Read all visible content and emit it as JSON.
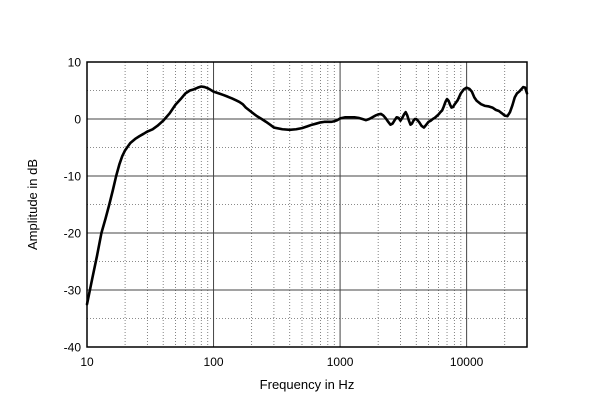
{
  "chart_data": {
    "type": "line",
    "xlabel": "Frequency in Hz",
    "ylabel": "Amplitude in dB",
    "x_scale": "log",
    "xlim": [
      10,
      30000
    ],
    "ylim": [
      -40,
      10
    ],
    "grid": true,
    "x_tick_labels": [
      "10",
      "100",
      "1000",
      "10000"
    ],
    "x_tick_values": [
      10,
      100,
      1000,
      10000
    ],
    "y_tick_labels": [
      "10",
      "0",
      "-10",
      "-20",
      "-30",
      "-40"
    ],
    "y_tick_values": [
      10,
      0,
      -10,
      -20,
      -30,
      -40
    ],
    "series": [
      {
        "x": [
          10,
          11,
          12,
          13,
          14,
          15,
          16,
          17,
          18,
          19,
          20,
          22,
          24,
          26,
          28,
          30,
          33,
          36,
          40,
          45,
          50,
          55,
          60,
          65,
          70,
          75,
          80,
          85,
          90,
          95,
          100,
          110,
          120,
          130,
          140,
          150,
          160,
          170,
          180,
          200,
          220,
          240,
          260,
          280,
          300,
          350,
          400,
          450,
          500,
          550,
          600,
          650,
          700,
          750,
          800,
          850,
          900,
          950,
          1000,
          1100,
          1200,
          1300,
          1400,
          1500,
          1600,
          1700,
          1800,
          1900,
          2000,
          2100,
          2200,
          2300,
          2400,
          2500,
          2600,
          2700,
          2800,
          2900,
          3000,
          3100,
          3200,
          3300,
          3400,
          3500,
          3600,
          3700,
          3800,
          3900,
          4000,
          4200,
          4400,
          4600,
          4800,
          5000,
          5200,
          5400,
          5600,
          5800,
          6000,
          6200,
          6400,
          6600,
          6800,
          7000,
          7200,
          7400,
          7600,
          7800,
          8000,
          8500,
          9000,
          9500,
          10000,
          10500,
          11000,
          11500,
          12000,
          13000,
          14000,
          15000,
          16000,
          17000,
          18000,
          19000,
          20000,
          21000,
          22000,
          23000,
          24000,
          25000,
          26000,
          27000,
          28000,
          29000,
          30000
        ],
        "y": [
          -32.5,
          -28,
          -24,
          -20,
          -17.5,
          -15,
          -12.5,
          -10,
          -8,
          -6.5,
          -5.5,
          -4.2,
          -3.5,
          -3,
          -2.6,
          -2.2,
          -1.8,
          -1.2,
          -0.3,
          1,
          2.5,
          3.5,
          4.5,
          5,
          5.2,
          5.5,
          5.7,
          5.6,
          5.4,
          5.1,
          4.8,
          4.5,
          4.2,
          3.9,
          3.6,
          3.3,
          3,
          2.6,
          2,
          1.2,
          0.5,
          0,
          -0.5,
          -1,
          -1.5,
          -1.8,
          -1.9,
          -1.8,
          -1.6,
          -1.3,
          -1,
          -0.8,
          -0.6,
          -0.5,
          -0.5,
          -0.5,
          -0.4,
          -0.2,
          0.1,
          0.3,
          0.3,
          0.3,
          0.2,
          0,
          -0.2,
          0,
          0.3,
          0.6,
          0.8,
          0.9,
          0.6,
          0.1,
          -0.5,
          -1,
          -0.8,
          -0.2,
          0.3,
          0.2,
          -0.3,
          0.2,
          0.8,
          1.2,
          0.6,
          -0.3,
          -1,
          -0.8,
          -0.3,
          0,
          0,
          -0.5,
          -1.2,
          -1.5,
          -1,
          -0.5,
          -0.3,
          0,
          0.2,
          0.5,
          0.8,
          1.2,
          1.5,
          2.2,
          3,
          3.5,
          3.2,
          2.5,
          2,
          2.1,
          2.5,
          3.3,
          4.5,
          5.2,
          5.5,
          5.3,
          4.8,
          3.8,
          3.2,
          2.6,
          2.3,
          2.2,
          2,
          1.6,
          1.4,
          1,
          0.6,
          0.5,
          1.2,
          2.4,
          3.8,
          4.5,
          4.8,
          5.2,
          5.6,
          5.5,
          4.5
        ]
      }
    ]
  }
}
